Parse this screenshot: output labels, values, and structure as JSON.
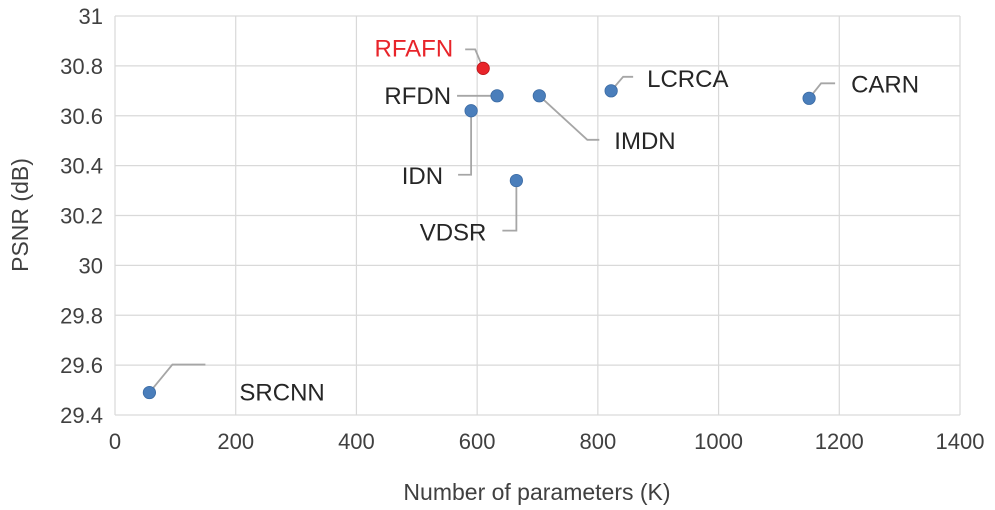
{
  "chart_data": {
    "type": "scatter",
    "title": "",
    "xlabel": "Number of parameters (K)",
    "ylabel": "PSNR (dB)",
    "xlim": [
      0,
      1400
    ],
    "ylim": [
      29.4,
      31
    ],
    "xticks": [
      0,
      200,
      400,
      600,
      800,
      1000,
      1200,
      1400
    ],
    "yticks": [
      29.4,
      29.6,
      29.8,
      30,
      30.2,
      30.4,
      30.6,
      30.8,
      31
    ],
    "ytick_labels": [
      "29.4",
      "29.6",
      "29.8",
      "30",
      "30.2",
      "30.4",
      "30.6",
      "30.8",
      "31"
    ],
    "grid": true,
    "legend": "none",
    "colors": {
      "default": "#4a7ebb",
      "highlight": "#e8242a",
      "leader": "#a6a6a6",
      "label": "#262626"
    },
    "points": [
      {
        "name": "SRCNN",
        "x": 57,
        "y": 29.49
      },
      {
        "name": "VDSR",
        "x": 665,
        "y": 30.34
      },
      {
        "name": "IDN",
        "x": 590,
        "y": 30.62
      },
      {
        "name": "RFDN",
        "x": 633,
        "y": 30.68
      },
      {
        "name": "IMDN",
        "x": 703,
        "y": 30.68
      },
      {
        "name": "LCRCA",
        "x": 822,
        "y": 30.7
      },
      {
        "name": "CARN",
        "x": 1150,
        "y": 30.67
      },
      {
        "name": "RFAFN",
        "x": 610,
        "y": 30.79,
        "highlight": true
      }
    ]
  }
}
